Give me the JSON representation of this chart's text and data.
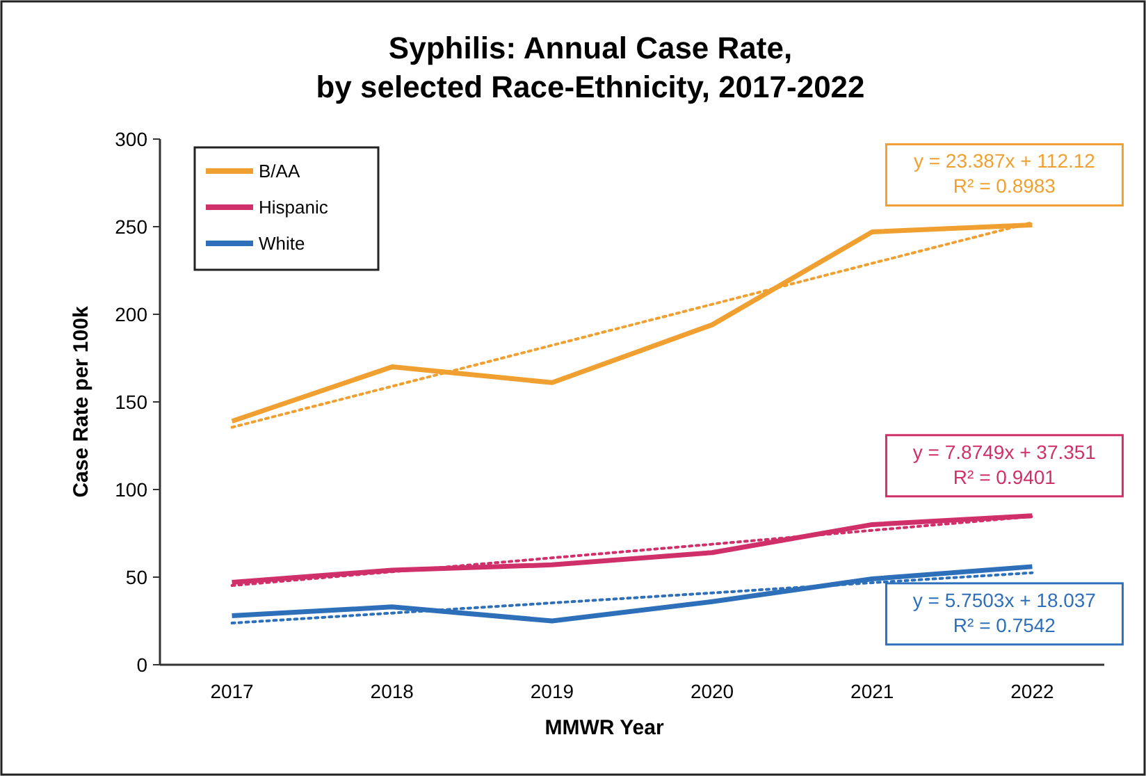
{
  "chart_data": {
    "type": "line",
    "title": "Syphilis: Annual Case Rate,\nby selected Race-Ethnicity, 2017-2022",
    "xlabel": "MMWR Year",
    "ylabel": "Case Rate per 100k",
    "categories": [
      "2017",
      "2018",
      "2019",
      "2020",
      "2021",
      "2022"
    ],
    "series": [
      {
        "name": "B/AA",
        "color": "#f0a030",
        "values": [
          139,
          170,
          161,
          194,
          247,
          251
        ]
      },
      {
        "name": "Hispanic",
        "color": "#d0306a",
        "values": [
          47,
          54,
          57,
          64,
          80,
          85
        ]
      },
      {
        "name": "White",
        "color": "#2e6fba",
        "values": [
          28,
          33,
          25,
          36,
          49,
          56
        ]
      },
      {
        "type": "line",
        "line_style": "dotted",
        "color": "#f0a030",
        "values": [
          135.5,
          158.9,
          182.3,
          205.7,
          229.1,
          252.4
        ]
      },
      {
        "type": "line",
        "line_style": "dotted",
        "color": "#d0306a",
        "values": [
          45.2,
          53.1,
          61.0,
          68.8,
          76.7,
          84.6
        ]
      },
      {
        "type": "line",
        "line_style": "dotted",
        "color": "#2e6fba",
        "values": [
          23.8,
          29.5,
          35.3,
          41.0,
          46.8,
          52.5
        ]
      }
    ],
    "annotations": [
      "y = 23.387x + 112.12\nR² = 0.8983",
      "y = 7.8749x + 37.351\nR² = 0.9401",
      "y = 5.7503x + 18.037\nR² = 0.7542"
    ],
    "ylim": [
      0,
      300
    ],
    "yticks": [
      0,
      50,
      100,
      150,
      200,
      250,
      300
    ],
    "grid": false,
    "legend": "top left",
    "marker": "none",
    "line_style": "solid"
  }
}
